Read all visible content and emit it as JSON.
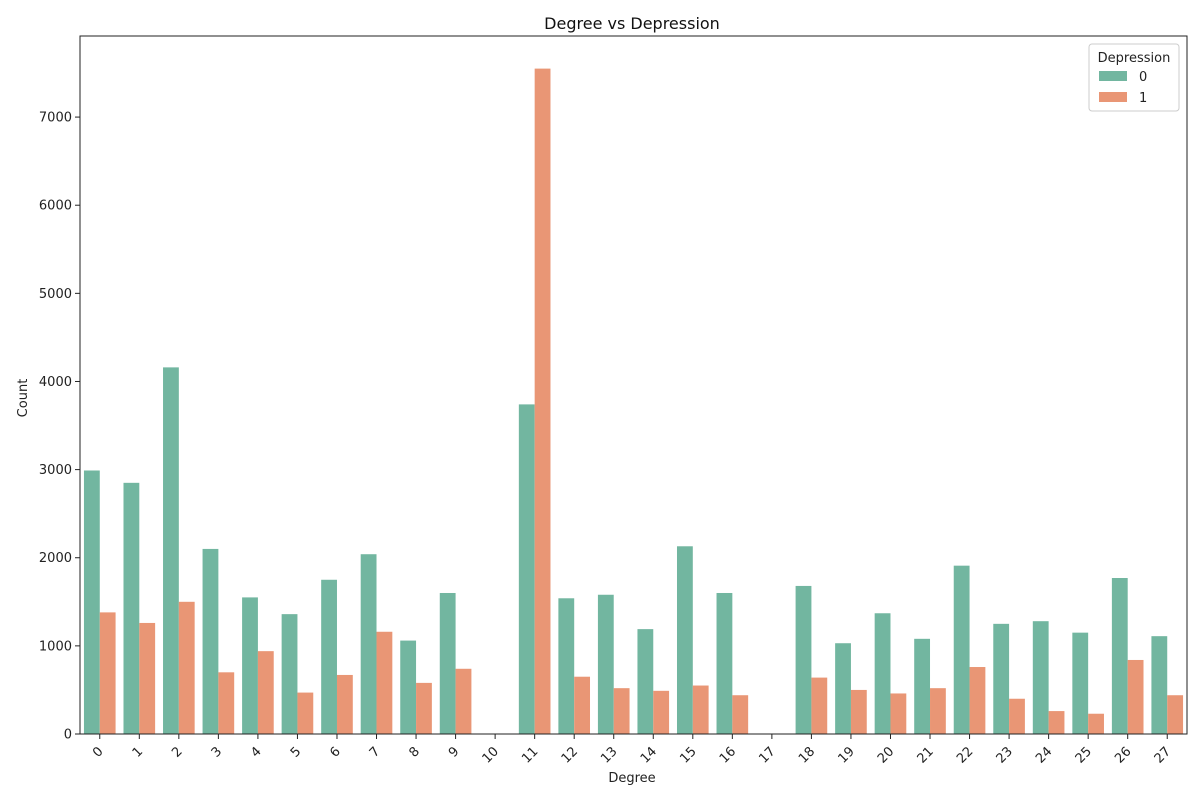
{
  "chart_data": {
    "type": "bar",
    "title": "Degree vs Depression",
    "xlabel": "Degree",
    "ylabel": "Count",
    "ylim": [
      0,
      7920
    ],
    "yticks": [
      0,
      1000,
      2000,
      3000,
      4000,
      5000,
      6000,
      7000
    ],
    "categories": [
      "0",
      "1",
      "2",
      "3",
      "4",
      "5",
      "6",
      "7",
      "8",
      "9",
      "10",
      "11",
      "12",
      "13",
      "14",
      "15",
      "16",
      "17",
      "18",
      "19",
      "20",
      "21",
      "22",
      "23",
      "24",
      "25",
      "26",
      "27"
    ],
    "legend": {
      "title": "Depression",
      "placement": "top-right"
    },
    "grid": false,
    "series": [
      {
        "name": "0",
        "color": "#72b6a0",
        "values": [
          2990,
          2850,
          4160,
          2100,
          1550,
          1360,
          1750,
          2040,
          1060,
          1600,
          0,
          3740,
          1540,
          1580,
          1190,
          2130,
          1600,
          0,
          1680,
          1030,
          1370,
          1080,
          1910,
          1250,
          1280,
          1150,
          1770,
          1110
        ]
      },
      {
        "name": "1",
        "color": "#e99675",
        "values": [
          1380,
          1260,
          1500,
          700,
          940,
          470,
          670,
          1160,
          580,
          740,
          0,
          7550,
          650,
          520,
          490,
          550,
          440,
          0,
          640,
          500,
          460,
          520,
          760,
          400,
          260,
          230,
          840,
          440
        ]
      }
    ]
  }
}
